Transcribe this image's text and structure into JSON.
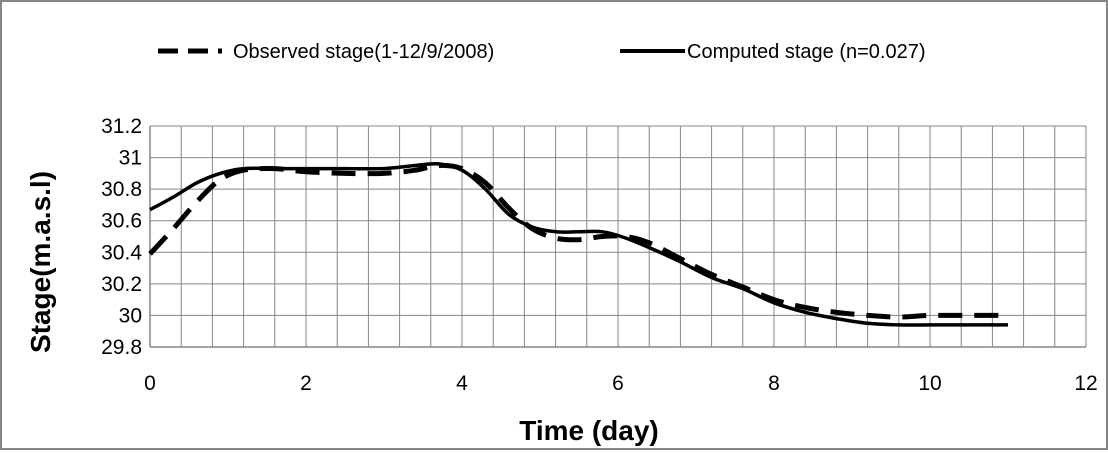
{
  "chart_data": {
    "type": "line",
    "title": "",
    "xlabel": "Time (day)",
    "ylabel": "Stage(m.a.s.l)",
    "xlim": [
      0,
      12
    ],
    "ylim": [
      29.8,
      31.2
    ],
    "x_ticks": [
      0,
      2,
      4,
      6,
      8,
      10,
      12
    ],
    "x_tick_labels": [
      "0",
      "2",
      "4",
      "6",
      "8",
      "10",
      "12"
    ],
    "y_ticks": [
      29.8,
      30,
      30.2,
      30.4,
      30.6,
      30.8,
      31,
      31.2
    ],
    "y_tick_labels": [
      "29.8",
      "30",
      "30.2",
      "30.4",
      "30.6",
      "30.8",
      "31",
      "31.2"
    ],
    "grid": true,
    "legend_position": "top",
    "series": [
      {
        "name": "Observed stage(1-12/9/2008)",
        "style": "dashed",
        "color": "#000000",
        "x": [
          0,
          0.3,
          0.6,
          0.9,
          1.2,
          1.6,
          2.0,
          2.5,
          3.0,
          3.4,
          3.7,
          4.0,
          4.3,
          4.6,
          4.9,
          5.2,
          5.5,
          5.8,
          6.1,
          6.4,
          6.8,
          7.2,
          7.6,
          8.0,
          8.4,
          8.8,
          9.2,
          9.6,
          10.0,
          10.5,
          11.0
        ],
        "y": [
          30.39,
          30.55,
          30.72,
          30.86,
          30.92,
          30.93,
          30.91,
          30.9,
          30.9,
          30.92,
          30.95,
          30.93,
          30.84,
          30.68,
          30.55,
          30.49,
          30.48,
          30.5,
          30.5,
          30.46,
          30.36,
          30.26,
          30.18,
          30.1,
          30.05,
          30.02,
          30.0,
          29.99,
          30.0,
          30.0,
          30.0
        ]
      },
      {
        "name": "Computed stage (n=0.027)",
        "style": "solid",
        "color": "#000000",
        "x": [
          0,
          0.3,
          0.6,
          0.9,
          1.2,
          1.6,
          2.0,
          2.5,
          3.0,
          3.4,
          3.7,
          4.0,
          4.3,
          4.6,
          4.9,
          5.2,
          5.5,
          5.8,
          6.1,
          6.4,
          6.8,
          7.2,
          7.6,
          8.0,
          8.4,
          8.8,
          9.2,
          9.6,
          10.0,
          10.5,
          11.0
        ],
        "y": [
          30.67,
          30.75,
          30.84,
          30.9,
          30.93,
          30.93,
          30.93,
          30.93,
          30.93,
          30.95,
          30.96,
          30.92,
          30.8,
          30.64,
          30.56,
          30.53,
          30.53,
          30.53,
          30.49,
          30.43,
          30.34,
          30.24,
          30.17,
          30.08,
          30.02,
          29.98,
          29.95,
          29.94,
          29.94,
          29.94,
          29.94
        ]
      }
    ]
  }
}
